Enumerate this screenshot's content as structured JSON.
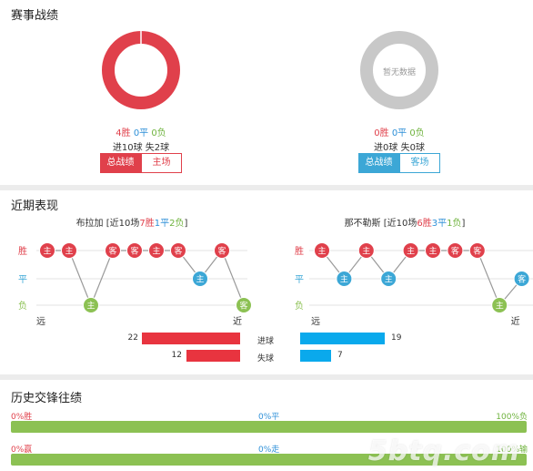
{
  "sections": {
    "record_title": "赛事战绩",
    "recent_title": "近期表现",
    "history_title": "历史交锋往绩"
  },
  "home_record": {
    "win": "4胜",
    "draw": "0平",
    "loss": "0负",
    "goals": "进10球 失2球",
    "tab_total": "总战绩",
    "tab_venue": "主场",
    "win_share": 1.0,
    "ring_color": "#e0404b"
  },
  "away_record": {
    "win": "0胜",
    "draw": "0平",
    "loss": "0负",
    "goals": "进0球 失0球",
    "tab_total": "总战绩",
    "tab_venue": "客场",
    "placeholder": "暂无数据",
    "ring_color": "#c8c8c8"
  },
  "recent": {
    "left": {
      "team": "布拉加",
      "summary_prefix": "[近10场",
      "wins": "7胜",
      "draws": "1平",
      "losses": "2负",
      "summary_suffix": "]",
      "results": [
        "W",
        "W",
        "L",
        "W",
        "W",
        "W",
        "W",
        "D",
        "W",
        "L"
      ],
      "venues": [
        "主",
        "主",
        "主",
        "客",
        "客",
        "主",
        "客",
        "主",
        "客",
        "客"
      ],
      "far": "远",
      "near": "近"
    },
    "right": {
      "team": "那不勒斯",
      "summary_prefix": "[近10场",
      "wins": "6胜",
      "draws": "3平",
      "losses": "1负",
      "summary_suffix": "]",
      "results": [
        "W",
        "D",
        "W",
        "D",
        "W",
        "W",
        "W",
        "W",
        "L",
        "D"
      ],
      "venues": [
        "主",
        "主",
        "主",
        "主",
        "主",
        "主",
        "客",
        "客",
        "主",
        "客"
      ],
      "far": "远",
      "near": "近"
    },
    "row_labels": {
      "win": "胜",
      "draw": "平",
      "loss": "负"
    },
    "goals_for_label": "进球",
    "goals_against_label": "失球",
    "home_goals_for": 22,
    "home_goals_against": 12,
    "away_goals_for": 19,
    "away_goals_against": 7,
    "colors": {
      "win": "#e0404b",
      "draw": "#3ca7d6",
      "loss": "#8cc153",
      "home_bar": "#e8343f",
      "away_bar": "#0aa9ec"
    }
  },
  "history": {
    "row1": {
      "left": "0%胜",
      "mid": "0%平",
      "right": "100%负"
    },
    "row2": {
      "left": "0%赢",
      "mid": "0%走",
      "right": "100%输"
    }
  },
  "watermark": "5btq.com"
}
